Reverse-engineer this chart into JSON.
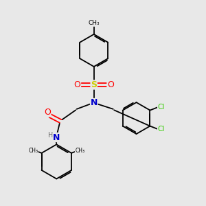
{
  "background_color": "#e8e8e8",
  "bond_color": "#000000",
  "bond_lw": 1.3,
  "atom_colors": {
    "C": "#000000",
    "N": "#0000cc",
    "O": "#ff0000",
    "S": "#cccc00",
    "Cl": "#33cc00",
    "H": "#606060"
  },
  "figsize": [
    3.0,
    3.0
  ],
  "dpi": 100,
  "xlim": [
    0,
    10
  ],
  "ylim": [
    0,
    10
  ]
}
